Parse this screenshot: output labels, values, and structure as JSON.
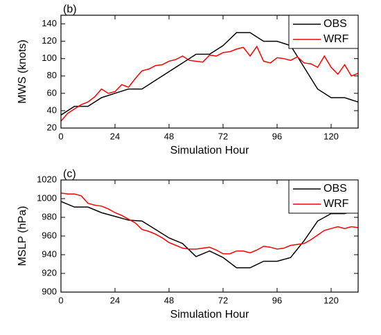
{
  "chart_data": [
    {
      "type": "line",
      "panel_label": "(b)",
      "y_label": "MWS (knots)",
      "x_label": "Simulation Hour",
      "xlim": [
        0,
        132
      ],
      "xticks": [
        0,
        24,
        48,
        72,
        96,
        120
      ],
      "ylim": [
        20,
        150
      ],
      "yticks": [
        20,
        40,
        60,
        80,
        100,
        120,
        140
      ],
      "legend": "upper right",
      "series": [
        {
          "name": "OBS",
          "color": "#000000",
          "x": [
            0,
            6,
            12,
            18,
            24,
            30,
            36,
            42,
            48,
            54,
            60,
            66,
            72,
            78,
            84,
            90,
            96,
            102,
            108,
            114,
            120,
            126,
            132
          ],
          "values": [
            35,
            45,
            45,
            55,
            60,
            65,
            65,
            75,
            85,
            95,
            105,
            105,
            115,
            130,
            130,
            120,
            120,
            115,
            90,
            65,
            55,
            55,
            50
          ]
        },
        {
          "name": "WRF",
          "color": "#ff0000",
          "x": [
            0,
            3,
            6,
            9,
            12,
            15,
            18,
            21,
            24,
            27,
            30,
            33,
            36,
            39,
            42,
            45,
            48,
            51,
            54,
            57,
            60,
            63,
            66,
            69,
            72,
            75,
            78,
            81,
            84,
            87,
            90,
            93,
            96,
            99,
            102,
            105,
            108,
            111,
            114,
            117,
            120,
            123,
            126,
            129,
            132
          ],
          "values": [
            28,
            37,
            42,
            47,
            50,
            56,
            65,
            60,
            62,
            70,
            67,
            77,
            86,
            88,
            92,
            93,
            97,
            99,
            103,
            98,
            97,
            96,
            104,
            103,
            107,
            108,
            111,
            113,
            103,
            114,
            97,
            95,
            101,
            100,
            98,
            102,
            95,
            94,
            90,
            103,
            90,
            82,
            93,
            80,
            83
          ]
        }
      ]
    },
    {
      "type": "line",
      "panel_label": "(c)",
      "y_label": "MSLP (hPa)",
      "x_label": "Simulation Hour",
      "xlim": [
        0,
        132
      ],
      "xticks": [
        0,
        24,
        48,
        72,
        96,
        120
      ],
      "ylim": [
        900,
        1020
      ],
      "yticks": [
        900,
        920,
        940,
        960,
        980,
        1000,
        1020
      ],
      "legend": "upper right",
      "series": [
        {
          "name": "OBS",
          "color": "#000000",
          "x": [
            0,
            6,
            12,
            18,
            24,
            30,
            36,
            42,
            48,
            54,
            60,
            66,
            72,
            78,
            84,
            90,
            96,
            102,
            108,
            114,
            120,
            126,
            132
          ],
          "values": [
            997,
            991,
            991,
            985,
            981,
            977,
            976,
            967,
            958,
            952,
            938,
            944,
            937,
            926,
            926,
            933,
            933,
            937,
            955,
            976,
            984,
            984,
            988
          ]
        },
        {
          "name": "WRF",
          "color": "#ff0000",
          "x": [
            0,
            3,
            6,
            9,
            12,
            15,
            18,
            21,
            24,
            27,
            30,
            33,
            36,
            39,
            42,
            45,
            48,
            51,
            54,
            57,
            60,
            63,
            66,
            69,
            72,
            75,
            78,
            81,
            84,
            87,
            90,
            93,
            96,
            99,
            102,
            105,
            108,
            111,
            114,
            117,
            120,
            123,
            126,
            129,
            132
          ],
          "values": [
            1006,
            1005,
            1005,
            1003,
            995,
            993,
            992,
            989,
            985,
            982,
            978,
            974,
            967,
            965,
            962,
            958,
            953,
            950,
            947,
            946,
            946,
            947,
            948,
            945,
            941,
            941,
            944,
            944,
            942,
            945,
            949,
            948,
            946,
            947,
            950,
            951,
            952,
            956,
            961,
            966,
            968,
            970,
            968,
            970,
            969
          ]
        }
      ]
    }
  ]
}
